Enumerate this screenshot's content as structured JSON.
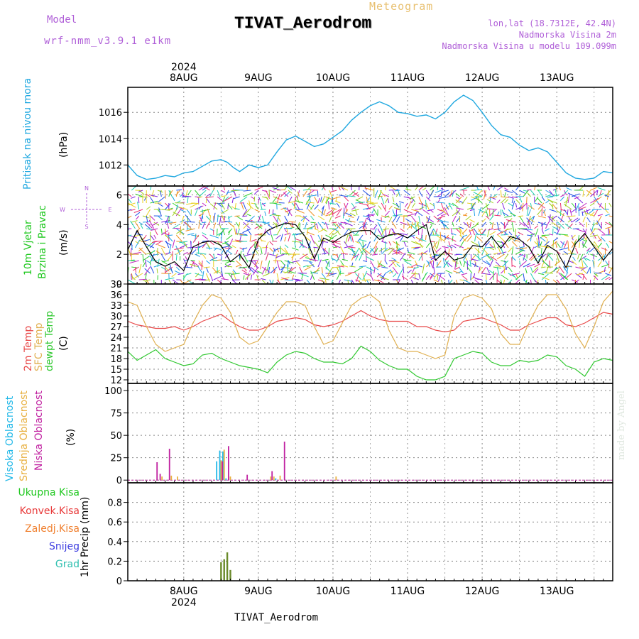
{
  "header": {
    "model_label": "Model",
    "model_version": "wrf-nmm_v3.9.1  e1km",
    "title": "TIVAT_Aerodrom",
    "meteogram": "Meteogram",
    "lonlat": "lon,lat (18.7312E, 42.4N)",
    "elevation": "Nadmorska Visina 2m",
    "model_elevation": "Nadmorska Visina u modelu 109.099m"
  },
  "footer": {
    "station": "TIVAT_Aerodrom"
  },
  "credit": "made by Angel",
  "time_axis": {
    "year": "2024",
    "days": [
      "8AUG",
      "9AUG",
      "10AUG",
      "11AUG",
      "12AUG",
      "13AUG"
    ],
    "start_hour": -18,
    "end_hour": 138
  },
  "panels": {
    "pressure": {
      "label": "Pritisak na nivou mora",
      "unit": "(hPa)"
    },
    "wind": {
      "label1": "10m Vjetar",
      "label2": "Brzina i Pravac",
      "unit": "(m/s)",
      "compass_n": "N",
      "compass_s": "S",
      "compass_w": "W",
      "compass_e": "E"
    },
    "temp": {
      "label1": "2m Temp",
      "label2": "SFC Temp",
      "label3": "dewpt Temp",
      "unit": "(C)"
    },
    "cloud": {
      "label1": "Visoka Oblacnost",
      "label2": "Srednja Oblacnost",
      "label3": "Niska Oblacnost",
      "unit": "(%)"
    },
    "precip": {
      "label1": "Ukupna Kisa",
      "label2": "Konvek.Kisa",
      "label3": "Zaledj.Kisa",
      "label4": "Snijeg",
      "label5": "Grad",
      "unit": "1hr Precip (mm)"
    }
  },
  "colors": {
    "pressure": "#20a8e0",
    "t2m": "#e84848",
    "sfc": "#e0b050",
    "dewpt": "#30c830",
    "high_cloud": "#20b8e8",
    "mid_cloud": "#e8b040",
    "low_cloud": "#c020a0",
    "total_rain": "#20c820",
    "conv_rain": "#e83838",
    "frz_rain": "#f08030",
    "snow": "#4040e0",
    "hail": "#30c0b0"
  },
  "chart_data": [
    {
      "type": "line",
      "x_unit": "hours since 8AUG 00 UTC",
      "ylim": [
        1010.4,
        1017.9
      ],
      "yticks": [
        1012,
        1014,
        1016
      ],
      "grid": true,
      "series": [
        {
          "x": [
            -18,
            -15,
            -12,
            -9,
            -6,
            -3,
            0,
            3,
            6,
            9,
            12,
            14,
            16,
            18,
            21,
            24,
            27,
            30,
            33,
            36,
            39,
            42,
            45,
            48,
            51,
            54,
            57,
            60,
            63,
            66,
            69,
            72,
            75,
            78,
            81,
            84,
            87,
            90,
            93,
            96,
            99,
            102,
            105,
            108,
            111,
            114,
            117,
            120,
            123,
            126,
            129,
            132,
            135,
            138
          ],
          "values": [
            1012.0,
            1011.2,
            1010.9,
            1011.0,
            1011.2,
            1011.1,
            1011.4,
            1011.5,
            1011.9,
            1012.3,
            1012.4,
            1012.2,
            1011.8,
            1011.5,
            1012.0,
            1011.8,
            1012.0,
            1013.0,
            1013.9,
            1014.2,
            1013.8,
            1013.4,
            1013.6,
            1014.1,
            1014.6,
            1015.4,
            1016.0,
            1016.5,
            1016.8,
            1016.5,
            1016.0,
            1015.9,
            1015.7,
            1015.8,
            1015.5,
            1016.0,
            1016.8,
            1017.3,
            1016.9,
            1016.0,
            1015.0,
            1014.3,
            1014.1,
            1013.5,
            1013.1,
            1013.3,
            1013.0,
            1012.2,
            1011.4,
            1011.0,
            1010.9,
            1011.0,
            1011.5,
            1011.4
          ]
        }
      ]
    },
    {
      "type": "line",
      "x_unit": "hours since 8AUG 00 UTC",
      "ylim": [
        0,
        6.6
      ],
      "yticks": [
        0,
        2,
        4,
        6
      ],
      "grid": true,
      "series": [
        {
          "name": "",
          "x": [
            -18,
            -15,
            -12,
            -9,
            -6,
            -3,
            0,
            3,
            6,
            9,
            12,
            15,
            18,
            21,
            24,
            27,
            30,
            33,
            36,
            39,
            42,
            45,
            48,
            51,
            54,
            57,
            60,
            63,
            66,
            69,
            72,
            75,
            78,
            81,
            84,
            87,
            90,
            93,
            96,
            99,
            102,
            105,
            108,
            111,
            114,
            117,
            120,
            123,
            126,
            129,
            132,
            135,
            138
          ],
          "values": [
            2.3,
            3.6,
            2.5,
            1.5,
            1.2,
            1.5,
            0.9,
            2.5,
            2.8,
            2.9,
            2.6,
            1.5,
            2.0,
            1.1,
            3.0,
            3.6,
            3.9,
            4.1,
            4.0,
            3.2,
            1.7,
            3.1,
            2.8,
            3.2,
            3.5,
            3.6,
            3.6,
            3.0,
            3.3,
            3.4,
            3.1,
            3.6,
            4.0,
            1.6,
            2.2,
            1.6,
            1.8,
            2.6,
            2.5,
            3.2,
            2.4,
            3.2,
            3.0,
            2.5,
            1.4,
            2.6,
            2.2,
            1.1,
            2.7,
            3.4,
            2.5,
            1.6,
            2.4
          ]
        }
      ]
    },
    {
      "type": "line",
      "x_unit": "hours since 8AUG 00 UTC",
      "ylim": [
        11,
        39
      ],
      "yticks": [
        12,
        15,
        18,
        21,
        24,
        27,
        30,
        33,
        36,
        39
      ],
      "grid": true,
      "series": [
        {
          "name": "2m Temp",
          "color": "#e84848",
          "x": [
            -18,
            -15,
            -12,
            -9,
            -6,
            -3,
            0,
            3,
            6,
            9,
            12,
            15,
            18,
            21,
            24,
            27,
            30,
            33,
            36,
            39,
            42,
            45,
            48,
            51,
            54,
            57,
            60,
            63,
            66,
            69,
            72,
            75,
            78,
            81,
            84,
            87,
            90,
            93,
            96,
            99,
            102,
            105,
            108,
            111,
            114,
            117,
            120,
            123,
            126,
            129,
            132,
            135,
            138
          ],
          "values": [
            28.5,
            27.5,
            27,
            26.5,
            26.5,
            27,
            26,
            27,
            28.5,
            29.5,
            30.5,
            28.5,
            27,
            26,
            26,
            27,
            28.5,
            29,
            29.5,
            29,
            27.5,
            27,
            27.5,
            28.5,
            30,
            31.5,
            30,
            29,
            28.5,
            28.5,
            28.5,
            27,
            27,
            26,
            25.5,
            26,
            28.5,
            29,
            29.5,
            28.5,
            27.5,
            26,
            26,
            27.5,
            28.5,
            29.5,
            29.5,
            27.5,
            27,
            28,
            29.5,
            31,
            30.5
          ]
        },
        {
          "name": "SFC Temp",
          "color": "#e0b050",
          "x": [
            -18,
            -15,
            -12,
            -9,
            -6,
            -3,
            0,
            3,
            6,
            9,
            12,
            15,
            18,
            21,
            24,
            27,
            30,
            33,
            36,
            39,
            42,
            45,
            48,
            51,
            54,
            57,
            60,
            63,
            66,
            69,
            72,
            75,
            78,
            81,
            84,
            87,
            90,
            93,
            96,
            99,
            102,
            105,
            108,
            111,
            114,
            117,
            120,
            123,
            126,
            129,
            132,
            135,
            138
          ],
          "values": [
            34,
            33,
            27,
            22,
            20,
            21,
            22,
            28,
            33,
            36,
            35,
            31,
            24,
            22,
            23,
            27,
            31,
            34,
            34,
            33,
            27,
            22,
            23,
            28,
            33,
            35,
            36,
            34,
            26,
            21,
            20,
            20,
            19,
            18,
            19,
            30,
            35,
            36,
            35,
            32,
            25,
            22,
            22,
            28,
            33,
            36,
            36,
            32,
            25,
            21,
            27,
            34,
            37
          ]
        },
        {
          "name": "dewpt Temp",
          "color": "#30c830",
          "x": [
            -18,
            -15,
            -12,
            -9,
            -6,
            -3,
            0,
            3,
            6,
            9,
            12,
            15,
            18,
            21,
            24,
            27,
            30,
            33,
            36,
            39,
            42,
            45,
            48,
            51,
            54,
            57,
            60,
            63,
            66,
            69,
            72,
            75,
            78,
            81,
            84,
            87,
            90,
            93,
            96,
            99,
            102,
            105,
            108,
            111,
            114,
            117,
            120,
            123,
            126,
            129,
            132,
            135,
            138
          ],
          "values": [
            20,
            17.5,
            19,
            20.5,
            18,
            17,
            16,
            16.5,
            19,
            19.5,
            18,
            17,
            16,
            15.5,
            15,
            14,
            17,
            19,
            20,
            19.5,
            18,
            17,
            17,
            16.5,
            18,
            21.5,
            20,
            17.5,
            16,
            15,
            15,
            13,
            12,
            12,
            13,
            18,
            19,
            20,
            19.5,
            17,
            16,
            16,
            17.5,
            17,
            17.5,
            19,
            18.5,
            16,
            15,
            13,
            17,
            18,
            17.5
          ]
        }
      ]
    },
    {
      "type": "bar",
      "x_unit": "hours since 8AUG 00 UTC",
      "ylim": [
        -3,
        108
      ],
      "yticks": [
        0,
        25,
        50,
        75,
        100
      ],
      "grid": true,
      "series": [
        {
          "name": "Visoka Oblacnost",
          "color": "#20b8e8",
          "x": [
            11,
            12,
            13,
            14,
            30
          ],
          "values": [
            21,
            33,
            32,
            2,
            2
          ]
        },
        {
          "name": "Srednja Oblacnost",
          "color": "#e8b040",
          "x": [
            -7,
            -4,
            -2,
            12,
            13,
            15,
            28,
            29,
            31,
            49
          ],
          "values": [
            4,
            5,
            4,
            22,
            34,
            4,
            4,
            4,
            5,
            4
          ]
        },
        {
          "name": "Niska Oblacnost",
          "color": "#c020a0",
          "x": [
            -9,
            -8,
            -5,
            12,
            14,
            20,
            28,
            32
          ],
          "values": [
            20,
            7,
            35,
            21,
            38,
            6,
            10,
            43
          ]
        }
      ]
    },
    {
      "type": "bar",
      "x_unit": "hours since 8AUG 00 UTC",
      "ylim": [
        0,
        1.0
      ],
      "yticks": [
        0,
        0.2,
        0.4,
        0.6,
        0.8
      ],
      "grid": true,
      "series": [
        {
          "name": "Ukupna Kisa",
          "color": "#20c820",
          "x": [
            12,
            13,
            14,
            15
          ],
          "values": [
            0.19,
            0.22,
            0.29,
            0.11
          ]
        }
      ]
    }
  ]
}
